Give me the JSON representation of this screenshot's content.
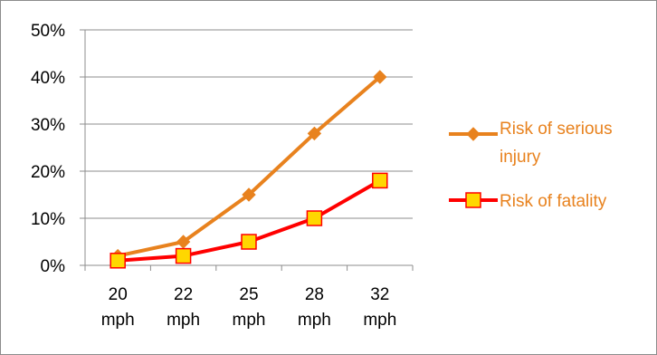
{
  "chart_data": {
    "type": "line",
    "categories": [
      "20 mph",
      "22 mph",
      "25 mph",
      "28 mph",
      "32 mph"
    ],
    "category_lines": [
      [
        "20",
        "mph"
      ],
      [
        "22",
        "mph"
      ],
      [
        "25",
        "mph"
      ],
      [
        "28",
        "mph"
      ],
      [
        "32",
        "mph"
      ]
    ],
    "ylim": [
      0,
      50
    ],
    "y_ticks": [
      0,
      10,
      20,
      30,
      40,
      50
    ],
    "y_tick_labels": [
      "0%",
      "10%",
      "20%",
      "30%",
      "40%",
      "50%"
    ],
    "grid": "horizontal",
    "legend_position": "right",
    "series": [
      {
        "name": "Risk of serious injury",
        "name_lines": [
          "Risk of serious",
          "injury"
        ],
        "values": [
          2,
          5,
          15,
          28,
          40
        ],
        "line_color": "#e8821e",
        "marker": "diamond",
        "marker_color": "#e8821e"
      },
      {
        "name": "Risk of fatality",
        "name_lines": [
          "Risk of fatality"
        ],
        "values": [
          1,
          2,
          5,
          10,
          18
        ],
        "line_color": "#ff0000",
        "marker": "square",
        "marker_color": "#ffd700"
      }
    ]
  },
  "legend_text_color": "#e8821e"
}
